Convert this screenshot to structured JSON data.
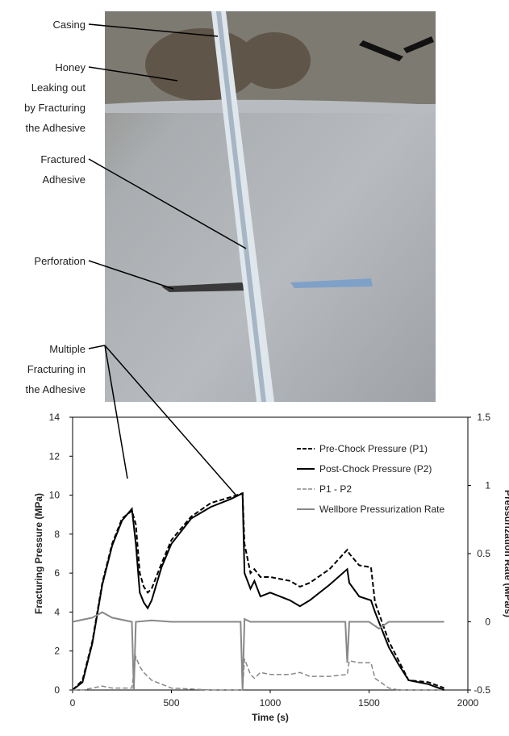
{
  "chart_data": {
    "type": "line",
    "annotations": [
      [
        "Casing"
      ],
      [
        "Honey",
        "Leaking out",
        "by Fracturing",
        "the Adhesive"
      ],
      [
        "Fractured",
        "Adhesive"
      ],
      [
        "Perforation"
      ],
      [
        "Multiple",
        "Fracturing in",
        "the Adhesive"
      ]
    ],
    "x_label": "Time (s)",
    "y_label": "Fracturing Pressure (MPa)",
    "y2_label": "Pressurization Rate (MPa/s)",
    "xlim": [
      0,
      2000
    ],
    "xticks": [
      0,
      500,
      1000,
      1500,
      2000
    ],
    "ylim": [
      0,
      14
    ],
    "yticks": [
      0,
      2,
      4,
      6,
      8,
      10,
      12,
      14
    ],
    "y2lim": [
      -0.5,
      1.5
    ],
    "y2ticks": [
      -0.5,
      0,
      0.5,
      1,
      1.5
    ],
    "series": [
      {
        "name": "Pre-Chock Pressure (P1)",
        "color": "#000000",
        "dash": true,
        "width": 2,
        "x": [
          0,
          50,
          100,
          150,
          200,
          250,
          300,
          320,
          340,
          360,
          380,
          400,
          450,
          500,
          600,
          700,
          800,
          860,
          870,
          900,
          920,
          950,
          1000,
          1100,
          1150,
          1200,
          1300,
          1390,
          1400,
          1450,
          1510,
          1530,
          1600,
          1650,
          1700,
          1800,
          1880
        ],
        "values": [
          0,
          0.5,
          2.5,
          5.5,
          7.5,
          8.8,
          9.2,
          8.5,
          6,
          5.3,
          5.0,
          5.2,
          6.5,
          7.7,
          8.9,
          9.6,
          9.9,
          10.1,
          7.5,
          6,
          6.2,
          5.8,
          5.8,
          5.6,
          5.3,
          5.5,
          6.2,
          7.2,
          7,
          6.4,
          6.3,
          4.5,
          2.5,
          1.5,
          0.5,
          0.4,
          0.1
        ]
      },
      {
        "name": "Post-Chock Pressure (P2)",
        "color": "#000000",
        "dash": false,
        "width": 2,
        "x": [
          0,
          50,
          100,
          150,
          200,
          250,
          300,
          320,
          340,
          360,
          380,
          400,
          450,
          500,
          600,
          700,
          800,
          860,
          870,
          900,
          920,
          950,
          1000,
          1100,
          1150,
          1200,
          1300,
          1390,
          1400,
          1450,
          1510,
          1530,
          1600,
          1650,
          1700,
          1800,
          1880
        ],
        "values": [
          0,
          0.4,
          2.4,
          5.4,
          7.4,
          8.7,
          9.3,
          7.5,
          5,
          4.5,
          4.2,
          4.6,
          6.3,
          7.5,
          8.8,
          9.4,
          9.8,
          10.1,
          6,
          5.2,
          5.6,
          4.8,
          5.0,
          4.6,
          4.3,
          4.6,
          5.4,
          6.2,
          5.5,
          4.8,
          4.6,
          4,
          2.2,
          1.3,
          0.5,
          0.3,
          0
        ]
      },
      {
        "name": "P1 - P2",
        "color": "#888888",
        "dash": true,
        "width": 1.5,
        "x": [
          0,
          50,
          100,
          150,
          200,
          250,
          300,
          320,
          340,
          360,
          380,
          400,
          450,
          500,
          600,
          700,
          800,
          860,
          870,
          900,
          920,
          950,
          1000,
          1100,
          1150,
          1200,
          1300,
          1390,
          1400,
          1450,
          1510,
          1530,
          1600,
          1650,
          1700,
          1800,
          1880
        ],
        "values": [
          0,
          0,
          0.1,
          0.2,
          0.1,
          0.1,
          0.1,
          1.7,
          1.2,
          0.9,
          0.7,
          0.5,
          0.3,
          0.1,
          0.05,
          0,
          0,
          0,
          1.6,
          0.8,
          0.6,
          0.9,
          0.8,
          0.8,
          0.9,
          0.7,
          0.7,
          0.8,
          1.5,
          1.4,
          1.4,
          0.6,
          0.1,
          0,
          0,
          0,
          0
        ]
      },
      {
        "name": "Wellbore Pressurization Rate",
        "color": "#888888",
        "dash": false,
        "width": 2,
        "axis": "y2",
        "x": [
          0,
          100,
          150,
          200,
          300,
          310,
          320,
          400,
          500,
          600,
          700,
          800,
          850,
          860,
          870,
          900,
          1000,
          1100,
          1200,
          1300,
          1380,
          1390,
          1400,
          1500,
          1550,
          1600,
          1700,
          1800,
          1880
        ],
        "values": [
          0,
          0.03,
          0.07,
          0.03,
          0,
          -0.5,
          0,
          0.01,
          0,
          0,
          0,
          0,
          0,
          -0.5,
          0.02,
          0,
          0,
          0,
          0,
          0,
          0,
          -0.3,
          0,
          0,
          -0.05,
          0,
          0,
          0,
          0
        ]
      }
    ]
  }
}
